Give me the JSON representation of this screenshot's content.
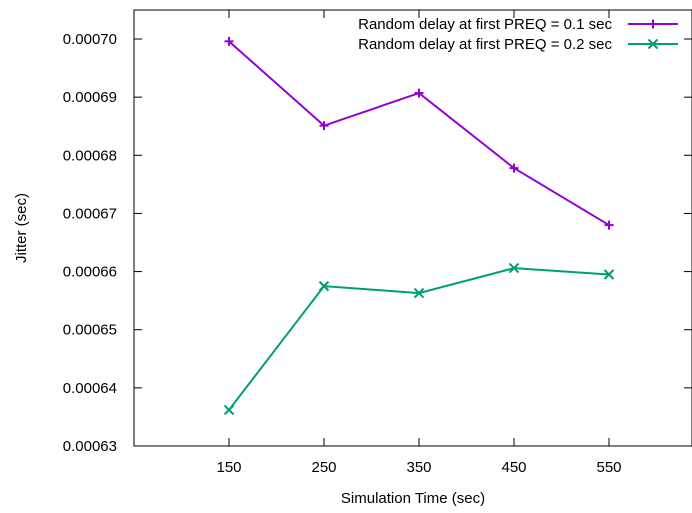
{
  "chart_data": {
    "type": "line",
    "title": "",
    "xlabel": "Simulation Time (sec)",
    "ylabel": "Jitter (sec)",
    "xlim": [
      50,
      650
    ],
    "ylim": [
      0.00063,
      0.000705
    ],
    "x_ticks": [
      150,
      250,
      350,
      450,
      550
    ],
    "x_tick_labels": [
      "150",
      "250",
      "350",
      "450",
      "550"
    ],
    "y_ticks": [
      0.00063,
      0.00064,
      0.00065,
      0.00066,
      0.00067,
      0.00068,
      0.00069,
      0.0007
    ],
    "y_tick_labels": [
      "0.00063",
      "0.00064",
      "0.00065",
      "0.00066",
      "0.00067",
      "0.00068",
      "0.00069",
      "0.00070"
    ],
    "grid": false,
    "legend_position": "top-right",
    "x": [
      150,
      250,
      350,
      450,
      550
    ],
    "series": [
      {
        "name": "Random delay at first PREQ = 0.1 sec",
        "color": "#9400d3",
        "marker": "plus",
        "values": [
          0.0006996,
          0.0006851,
          0.0006907,
          0.0006778,
          0.000668
        ]
      },
      {
        "name": "Random delay at first PREQ = 0.2 sec",
        "color": "#009e73",
        "marker": "cross",
        "values": [
          0.0006362,
          0.0006575,
          0.0006563,
          0.0006606,
          0.0006595
        ]
      }
    ]
  }
}
